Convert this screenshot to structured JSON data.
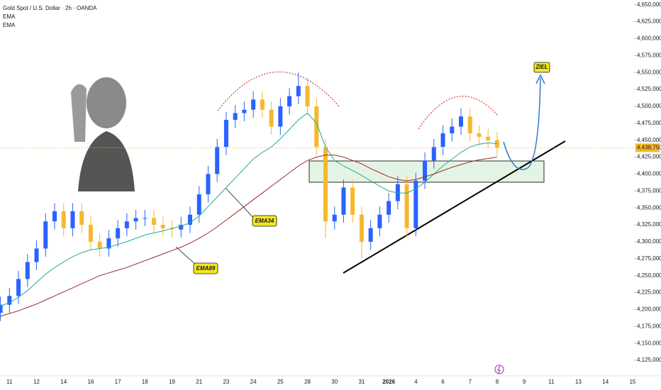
{
  "chart_data": {
    "type": "candlestick",
    "title": "Gold Spot / U.S. Dollar · 2h · OANDA",
    "indicators": [
      "EMA",
      "EMA"
    ],
    "annotations": [
      "EMA34",
      "EMA89",
      "ZIEL"
    ],
    "current_price": {
      "value": 4438.75,
      "label": "4,438,750"
    },
    "up_color": "#2962ff",
    "down_color": "#f5b82e",
    "categories": [
      null,
      "11",
      null,
      null,
      "12",
      null,
      null,
      "14",
      null,
      null,
      "16",
      null,
      null,
      "17",
      null,
      null,
      "18",
      null,
      null,
      "19",
      null,
      null,
      "21",
      null,
      null,
      "23",
      null,
      null,
      "24",
      null,
      null,
      "25",
      null,
      null,
      "28",
      null,
      null,
      "30",
      null,
      null,
      "31",
      null,
      null,
      "2026",
      null,
      null,
      "4",
      null,
      null,
      "6",
      null,
      null,
      "7",
      null,
      null,
      "8",
      null,
      null,
      "9",
      null,
      null,
      "11",
      null,
      null,
      "13",
      null,
      null,
      "14",
      null,
      null,
      "15"
    ],
    "open": [
      4195,
      4207,
      4220,
      4245,
      4270,
      4290,
      4330,
      4345,
      4320,
      4345,
      4325,
      4300,
      4290,
      4305,
      4320,
      4330,
      4335,
      4335,
      4325,
      4320,
      4318,
      4325,
      4340,
      4370,
      4400,
      4440,
      4480,
      4490,
      4495,
      4510,
      4495,
      4470,
      4500,
      4515,
      4530,
      4500,
      4440,
      4330,
      4340,
      4380,
      4340,
      4300,
      4320,
      4340,
      4360,
      4385,
      4320,
      4390,
      4420,
      4440,
      4460,
      4470,
      4485,
      4460,
      4455,
      4450,
      null,
      null,
      null,
      null,
      null,
      null,
      null,
      null,
      null,
      null,
      null,
      null,
      null,
      null,
      null
    ],
    "high": [
      4219,
      4232,
      4257,
      4282,
      4302,
      4342,
      4357,
      4357,
      4357,
      4357,
      4337,
      4312,
      4317,
      4332,
      4342,
      4347,
      4347,
      4347,
      4337,
      4332,
      4337,
      4352,
      4382,
      4412,
      4452,
      4492,
      4502,
      4507,
      4522,
      4522,
      4507,
      4512,
      4527,
      4550,
      4542,
      4512,
      4452,
      4352,
      4392,
      4392,
      4352,
      4332,
      4352,
      4372,
      4397,
      4397,
      4402,
      4432,
      4452,
      4472,
      4482,
      4497,
      4497,
      4472,
      4467,
      4462,
      null,
      null,
      null,
      null,
      null,
      null,
      null,
      null,
      null,
      null,
      null,
      null,
      null,
      null,
      null
    ],
    "low": [
      4183,
      4195,
      4208,
      4233,
      4258,
      4278,
      4318,
      4308,
      4308,
      4313,
      4288,
      4278,
      4278,
      4293,
      4308,
      4318,
      4323,
      4313,
      4308,
      4306,
      4306,
      4313,
      4328,
      4358,
      4388,
      4428,
      4468,
      4478,
      4483,
      4483,
      4458,
      4458,
      4488,
      4503,
      4488,
      4428,
      4305,
      4318,
      4328,
      4328,
      4275,
      4288,
      4308,
      4328,
      4348,
      4308,
      4308,
      4378,
      4408,
      4428,
      4448,
      4458,
      4448,
      4443,
      4438,
      4427,
      null,
      null,
      null,
      null,
      null,
      null,
      null,
      null,
      null,
      null,
      null,
      null,
      null,
      null,
      null
    ],
    "close": [
      4207,
      4220,
      4245,
      4270,
      4290,
      4330,
      4345,
      4320,
      4345,
      4325,
      4300,
      4290,
      4305,
      4320,
      4330,
      4335,
      4335,
      4325,
      4320,
      4318,
      4325,
      4340,
      4370,
      4400,
      4440,
      4480,
      4490,
      4495,
      4510,
      4495,
      4470,
      4500,
      4515,
      4530,
      4500,
      4440,
      4330,
      4340,
      4380,
      4340,
      4300,
      4320,
      4340,
      4360,
      4385,
      4320,
      4390,
      4420,
      4440,
      4460,
      4470,
      4485,
      4460,
      4455,
      4450,
      4439,
      null,
      null,
      null,
      null,
      null,
      null,
      null,
      null,
      null,
      null,
      null,
      null,
      null,
      null,
      null
    ],
    "series": [
      {
        "name": "EMA34",
        "color": "#22ab94",
        "values": [
          4205,
          4210,
          4218,
          4228,
          4240,
          4252,
          4262,
          4270,
          4278,
          4284,
          4288,
          4290,
          4292,
          4296,
          4300,
          4305,
          4310,
          4313,
          4316,
          4320,
          4323,
          4328,
          4338,
          4352,
          4366,
          4380,
          4394,
          4408,
          4422,
          4432,
          4440,
          4452,
          4466,
          4480,
          4490,
          4475,
          4440,
          4420,
          4412,
          4405,
          4398,
          4390,
          4382,
          4375,
          4372,
          4372,
          4378,
          4388,
          4400,
          4412,
          4422,
          4432,
          4440,
          4444,
          4446,
          4445,
          null,
          null,
          null,
          null,
          null,
          null,
          null,
          null,
          null,
          null,
          null,
          null,
          null,
          null,
          null
        ]
      },
      {
        "name": "EMA89",
        "color": "#9c2a2a",
        "values": [
          4190,
          4194,
          4198,
          4203,
          4208,
          4214,
          4220,
          4226,
          4232,
          4238,
          4244,
          4250,
          4254,
          4258,
          4262,
          4267,
          4272,
          4277,
          4282,
          4287,
          4292,
          4298,
          4305,
          4313,
          4322,
          4332,
          4342,
          4352,
          4362,
          4372,
          4382,
          4392,
          4402,
          4412,
          4420,
          4425,
          4428,
          4428,
          4425,
          4420,
          4415,
          4408,
          4402,
          4396,
          4392,
          4390,
          4392,
          4396,
          4400,
          4405,
          4410,
          4414,
          4418,
          4421,
          4423,
          4425,
          null,
          null,
          null,
          null,
          null,
          null,
          null,
          null,
          null,
          null,
          null,
          null,
          null,
          null,
          null
        ]
      }
    ],
    "ylim": [
      4102,
      4657
    ],
    "yticks": [
      {
        "value": 4125,
        "label": "4,125,000"
      },
      {
        "value": 4150,
        "label": "4,150,000"
      },
      {
        "value": 4175,
        "label": "4,175,000"
      },
      {
        "value": 4200,
        "label": "4,200,000"
      },
      {
        "value": 4225,
        "label": "4,225,000"
      },
      {
        "value": 4250,
        "label": "4,250,000"
      },
      {
        "value": 4275,
        "label": "4,275,000"
      },
      {
        "value": 4300,
        "label": "4,300,000"
      },
      {
        "value": 4325,
        "label": "4,325,000"
      },
      {
        "value": 4350,
        "label": "4,350,000"
      },
      {
        "value": 4375,
        "label": "4,375,000"
      },
      {
        "value": 4400,
        "label": "4,400,000"
      },
      {
        "value": 4425,
        "label": "4,425,000"
      },
      {
        "value": 4450,
        "label": "4,450,000"
      },
      {
        "value": 4475,
        "label": "4,475,000"
      },
      {
        "value": 4500,
        "label": "4,500,000"
      },
      {
        "value": 4525,
        "label": "4,525,000"
      },
      {
        "value": 4550,
        "label": "4,550,000"
      },
      {
        "value": 4575,
        "label": "4,575,000"
      },
      {
        "value": 4600,
        "label": "4,600,000"
      },
      {
        "value": 4625,
        "label": "4,625,000"
      },
      {
        "value": 4650,
        "label": "4,650,000"
      }
    ],
    "grid": false
  }
}
